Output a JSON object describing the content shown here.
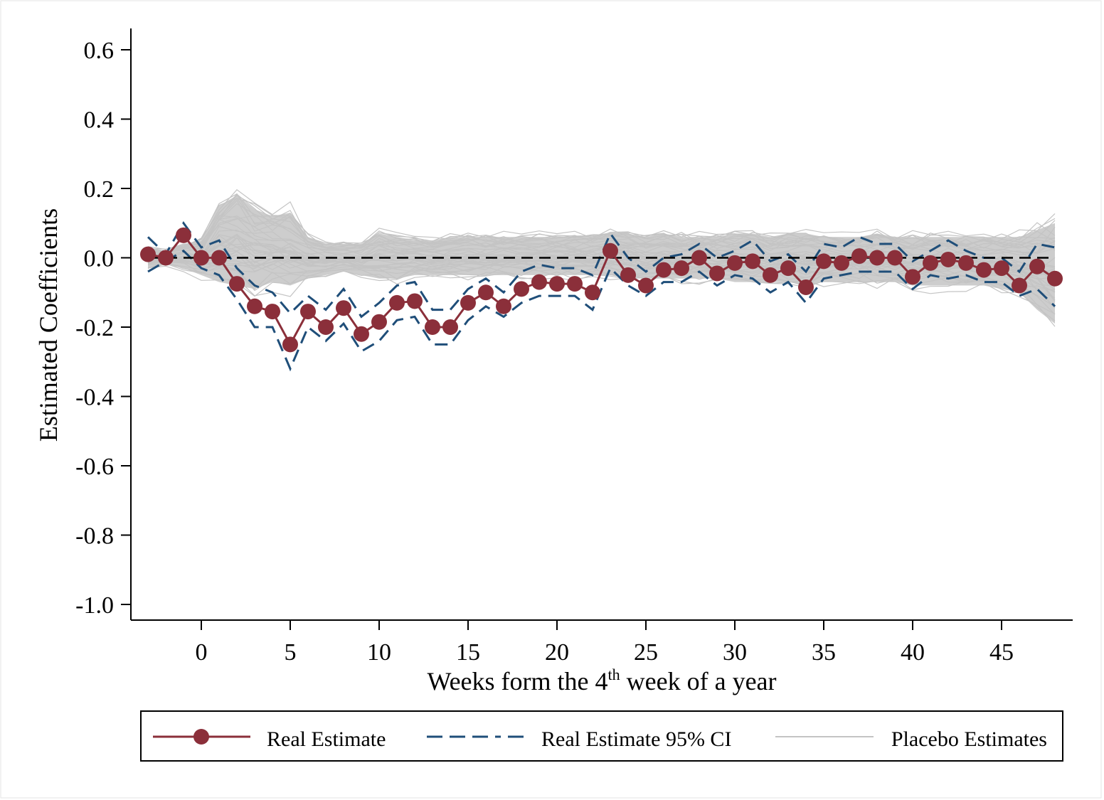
{
  "chart_data": {
    "type": "line",
    "xlabel_pre": "Weeks form the 4",
    "xlabel_sup": "th",
    "xlabel_post": " week of a year",
    "ylabel": "Estimated Coefficients",
    "xlim": [
      -3,
      48
    ],
    "ylim": [
      -1.0,
      0.6
    ],
    "x_ticks": [
      0,
      5,
      10,
      15,
      20,
      25,
      30,
      35,
      40,
      45
    ],
    "y_ticks": [
      0.6,
      0.4,
      0.2,
      0.0,
      -0.2,
      -0.4,
      -0.6,
      -0.8,
      -1.0
    ],
    "y_tick_labels": [
      "0.6",
      "0.4",
      "0.2",
      "0.0",
      "-0.2",
      "-0.4",
      "-0.6",
      "-0.8",
      "-1.0"
    ],
    "reference_line_y": 0,
    "legend_position": "bottom",
    "colors": {
      "estimate": "#8b2f3a",
      "ci": "#1f4e79",
      "placebo": "#c4c4c4",
      "reference": "#000000"
    },
    "x": [
      -3,
      -2,
      -1,
      0,
      1,
      2,
      3,
      4,
      5,
      6,
      7,
      8,
      9,
      10,
      11,
      12,
      13,
      14,
      15,
      16,
      17,
      18,
      19,
      20,
      21,
      22,
      23,
      24,
      25,
      26,
      27,
      28,
      29,
      30,
      31,
      32,
      33,
      34,
      35,
      36,
      37,
      38,
      39,
      40,
      41,
      42,
      43,
      44,
      45,
      46,
      47,
      48
    ],
    "series": [
      {
        "name": "Real Estimate",
        "values": [
          0.01,
          0.0,
          0.065,
          0.0,
          0.0,
          -0.075,
          -0.14,
          -0.155,
          -0.25,
          -0.155,
          -0.2,
          -0.145,
          -0.22,
          -0.185,
          -0.13,
          -0.125,
          -0.2,
          -0.2,
          -0.13,
          -0.1,
          -0.14,
          -0.09,
          -0.07,
          -0.075,
          -0.075,
          -0.1,
          0.02,
          -0.05,
          -0.08,
          -0.035,
          -0.03,
          0.0,
          -0.045,
          -0.015,
          -0.01,
          -0.05,
          -0.03,
          -0.085,
          -0.01,
          -0.015,
          0.005,
          0.0,
          0.0,
          -0.055,
          -0.015,
          -0.005,
          -0.015,
          -0.035,
          -0.03,
          -0.08,
          -0.025,
          -0.06
        ]
      },
      {
        "name": "Real Estimate 95% CI",
        "upper": [
          0.06,
          0.01,
          0.1,
          0.03,
          0.05,
          -0.03,
          -0.08,
          -0.1,
          -0.16,
          -0.11,
          -0.15,
          -0.09,
          -0.17,
          -0.13,
          -0.08,
          -0.07,
          -0.15,
          -0.15,
          -0.09,
          -0.06,
          -0.1,
          -0.04,
          -0.02,
          -0.03,
          -0.03,
          -0.05,
          0.07,
          0.0,
          -0.04,
          0.0,
          0.01,
          0.04,
          0.0,
          0.02,
          0.05,
          -0.01,
          0.01,
          -0.04,
          0.04,
          0.03,
          0.06,
          0.04,
          0.04,
          -0.01,
          0.02,
          0.05,
          0.02,
          0.0,
          0.0,
          -0.04,
          0.04,
          0.03
        ],
        "lower": [
          -0.04,
          -0.01,
          0.02,
          -0.03,
          -0.05,
          -0.12,
          -0.2,
          -0.2,
          -0.32,
          -0.2,
          -0.24,
          -0.19,
          -0.27,
          -0.24,
          -0.18,
          -0.17,
          -0.25,
          -0.25,
          -0.18,
          -0.14,
          -0.17,
          -0.13,
          -0.11,
          -0.11,
          -0.11,
          -0.15,
          -0.03,
          -0.08,
          -0.11,
          -0.07,
          -0.07,
          -0.04,
          -0.08,
          -0.05,
          -0.06,
          -0.1,
          -0.07,
          -0.13,
          -0.06,
          -0.05,
          -0.04,
          -0.04,
          -0.04,
          -0.09,
          -0.05,
          -0.06,
          -0.05,
          -0.07,
          -0.07,
          -0.11,
          -0.09,
          -0.14
        ]
      },
      {
        "name": "Placebo Estimates",
        "band_upper": [
          0.03,
          0.02,
          0.04,
          0.05,
          0.15,
          0.18,
          0.14,
          0.12,
          0.13,
          0.06,
          0.04,
          0.04,
          0.04,
          0.07,
          0.06,
          0.05,
          0.05,
          0.06,
          0.06,
          0.06,
          0.06,
          0.06,
          0.06,
          0.06,
          0.06,
          0.06,
          0.07,
          0.07,
          0.06,
          0.07,
          0.06,
          0.06,
          0.06,
          0.07,
          0.07,
          0.06,
          0.07,
          0.07,
          0.06,
          0.06,
          0.06,
          0.07,
          0.06,
          0.06,
          0.06,
          0.06,
          0.06,
          0.06,
          0.06,
          0.06,
          0.08,
          0.1
        ],
        "band_lower": [
          -0.03,
          -0.02,
          -0.03,
          -0.05,
          -0.07,
          -0.08,
          -0.09,
          -0.07,
          -0.08,
          -0.06,
          -0.05,
          -0.04,
          -0.05,
          -0.06,
          -0.06,
          -0.05,
          -0.05,
          -0.05,
          -0.05,
          -0.05,
          -0.05,
          -0.05,
          -0.05,
          -0.05,
          -0.05,
          -0.05,
          -0.05,
          -0.06,
          -0.06,
          -0.06,
          -0.06,
          -0.06,
          -0.06,
          -0.07,
          -0.07,
          -0.07,
          -0.07,
          -0.08,
          -0.07,
          -0.07,
          -0.07,
          -0.07,
          -0.07,
          -0.08,
          -0.08,
          -0.08,
          -0.08,
          -0.08,
          -0.09,
          -0.1,
          -0.15,
          -0.19
        ]
      }
    ]
  }
}
